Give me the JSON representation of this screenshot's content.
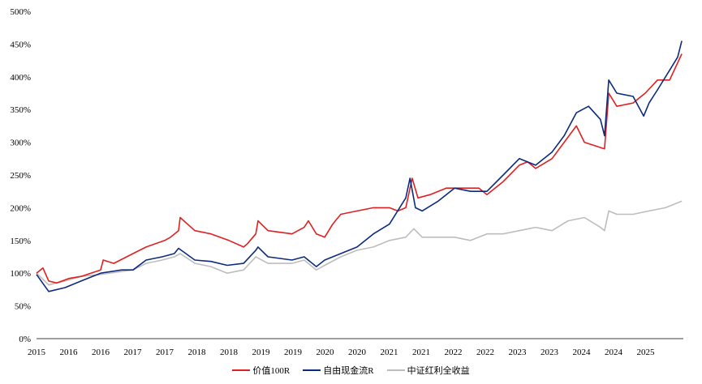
{
  "chart_data": {
    "type": "line",
    "title": "",
    "xlabel": "",
    "ylabel": "",
    "ylim": [
      0,
      500
    ],
    "yticks": [
      "0%",
      "50%",
      "100%",
      "150%",
      "200%",
      "250%",
      "300%",
      "350%",
      "400%",
      "450%",
      "500%"
    ],
    "xticks": [
      "2015",
      "2016",
      "2016",
      "2017",
      "2017",
      "2018",
      "2018",
      "2019",
      "2019",
      "2020",
      "2020",
      "2021",
      "2021",
      "2022",
      "2022",
      "2023",
      "2023",
      "2024",
      "2024",
      "2025"
    ],
    "x_unit": "tick index (half-year)",
    "legend_position": "bottom",
    "series": [
      {
        "name": "价值100R",
        "color": "#e02020",
        "points": [
          [
            0,
            100
          ],
          [
            0.2,
            108
          ],
          [
            0.38,
            88
          ],
          [
            0.63,
            85
          ],
          [
            1.01,
            92
          ],
          [
            1.39,
            95
          ],
          [
            2,
            105
          ],
          [
            2.08,
            120
          ],
          [
            2.41,
            115
          ],
          [
            3.01,
            130
          ],
          [
            3.42,
            140
          ],
          [
            4,
            150
          ],
          [
            4.18,
            155
          ],
          [
            4.43,
            165
          ],
          [
            4.48,
            185
          ],
          [
            4.94,
            165
          ],
          [
            5.44,
            160
          ],
          [
            6,
            150
          ],
          [
            6.46,
            140
          ],
          [
            6.58,
            145
          ],
          [
            6.84,
            160
          ],
          [
            6.91,
            180
          ],
          [
            7.22,
            165
          ],
          [
            7.97,
            160
          ],
          [
            8.35,
            170
          ],
          [
            8.48,
            180
          ],
          [
            8.73,
            160
          ],
          [
            8.99,
            155
          ],
          [
            9.24,
            175
          ],
          [
            9.49,
            190
          ],
          [
            10,
            195
          ],
          [
            10.51,
            200
          ],
          [
            11.01,
            200
          ],
          [
            11.27,
            195
          ],
          [
            11.52,
            200
          ],
          [
            11.72,
            245
          ],
          [
            11.9,
            215
          ],
          [
            12.28,
            220
          ],
          [
            12.78,
            230
          ],
          [
            13.29,
            230
          ],
          [
            13.8,
            230
          ],
          [
            14.05,
            220
          ],
          [
            14.56,
            240
          ],
          [
            15.06,
            265
          ],
          [
            15.32,
            270
          ],
          [
            15.57,
            260
          ],
          [
            16.08,
            275
          ],
          [
            16.46,
            300
          ],
          [
            16.84,
            325
          ],
          [
            17.09,
            300
          ],
          [
            17.72,
            290
          ],
          [
            17.85,
            375
          ],
          [
            18.1,
            355
          ],
          [
            18.61,
            360
          ],
          [
            18.86,
            370
          ],
          [
            18.99,
            375
          ],
          [
            19.37,
            395
          ],
          [
            19.75,
            395
          ],
          [
            20.13,
            435
          ]
        ]
      },
      {
        "name": "自由现金流R",
        "color": "#0c2a80",
        "points": [
          [
            0,
            98
          ],
          [
            0.38,
            72
          ],
          [
            0.89,
            78
          ],
          [
            1.39,
            88
          ],
          [
            2,
            100
          ],
          [
            2.66,
            105
          ],
          [
            3.01,
            105
          ],
          [
            3.42,
            120
          ],
          [
            3.92,
            125
          ],
          [
            4.3,
            130
          ],
          [
            4.43,
            138
          ],
          [
            4.94,
            120
          ],
          [
            5.44,
            118
          ],
          [
            5.95,
            112
          ],
          [
            6.46,
            115
          ],
          [
            6.84,
            135
          ],
          [
            6.91,
            140
          ],
          [
            7.22,
            125
          ],
          [
            7.97,
            120
          ],
          [
            8.35,
            125
          ],
          [
            8.73,
            110
          ],
          [
            8.99,
            120
          ],
          [
            9.49,
            130
          ],
          [
            10,
            140
          ],
          [
            10.51,
            160
          ],
          [
            11.01,
            175
          ],
          [
            11.52,
            215
          ],
          [
            11.65,
            245
          ],
          [
            11.82,
            200
          ],
          [
            12.03,
            195
          ],
          [
            12.53,
            210
          ],
          [
            13.04,
            230
          ],
          [
            13.54,
            225
          ],
          [
            14.05,
            225
          ],
          [
            14.56,
            250
          ],
          [
            15.06,
            275
          ],
          [
            15.57,
            265
          ],
          [
            16.08,
            285
          ],
          [
            16.46,
            310
          ],
          [
            16.84,
            345
          ],
          [
            17.22,
            355
          ],
          [
            17.59,
            335
          ],
          [
            17.72,
            310
          ],
          [
            17.85,
            395
          ],
          [
            18.1,
            375
          ],
          [
            18.61,
            370
          ],
          [
            18.94,
            340
          ],
          [
            19.11,
            360
          ],
          [
            19.37,
            380
          ],
          [
            19.75,
            410
          ],
          [
            20,
            430
          ],
          [
            20.13,
            455
          ]
        ]
      },
      {
        "name": "中证红利全收益",
        "color": "#bdbdbd",
        "points": [
          [
            0,
            100
          ],
          [
            0.38,
            82
          ],
          [
            0.89,
            88
          ],
          [
            1.39,
            95
          ],
          [
            2,
            98
          ],
          [
            3.01,
            105
          ],
          [
            3.42,
            115
          ],
          [
            3.92,
            120
          ],
          [
            4.3,
            125
          ],
          [
            4.48,
            130
          ],
          [
            4.94,
            115
          ],
          [
            5.44,
            110
          ],
          [
            5.95,
            100
          ],
          [
            6.46,
            105
          ],
          [
            6.84,
            125
          ],
          [
            7.22,
            115
          ],
          [
            7.97,
            115
          ],
          [
            8.35,
            120
          ],
          [
            8.73,
            105
          ],
          [
            8.99,
            112
          ],
          [
            9.49,
            125
          ],
          [
            10,
            135
          ],
          [
            10.51,
            140
          ],
          [
            11.01,
            150
          ],
          [
            11.52,
            155
          ],
          [
            11.77,
            168
          ],
          [
            12.03,
            155
          ],
          [
            12.53,
            155
          ],
          [
            13.04,
            155
          ],
          [
            13.54,
            150
          ],
          [
            14.05,
            160
          ],
          [
            14.56,
            160
          ],
          [
            15.06,
            165
          ],
          [
            15.57,
            170
          ],
          [
            16.08,
            165
          ],
          [
            16.58,
            180
          ],
          [
            17.09,
            185
          ],
          [
            17.59,
            170
          ],
          [
            17.72,
            165
          ],
          [
            17.85,
            195
          ],
          [
            18.1,
            190
          ],
          [
            18.61,
            190
          ],
          [
            19.11,
            195
          ],
          [
            19.62,
            200
          ],
          [
            20.13,
            210
          ]
        ]
      }
    ]
  }
}
